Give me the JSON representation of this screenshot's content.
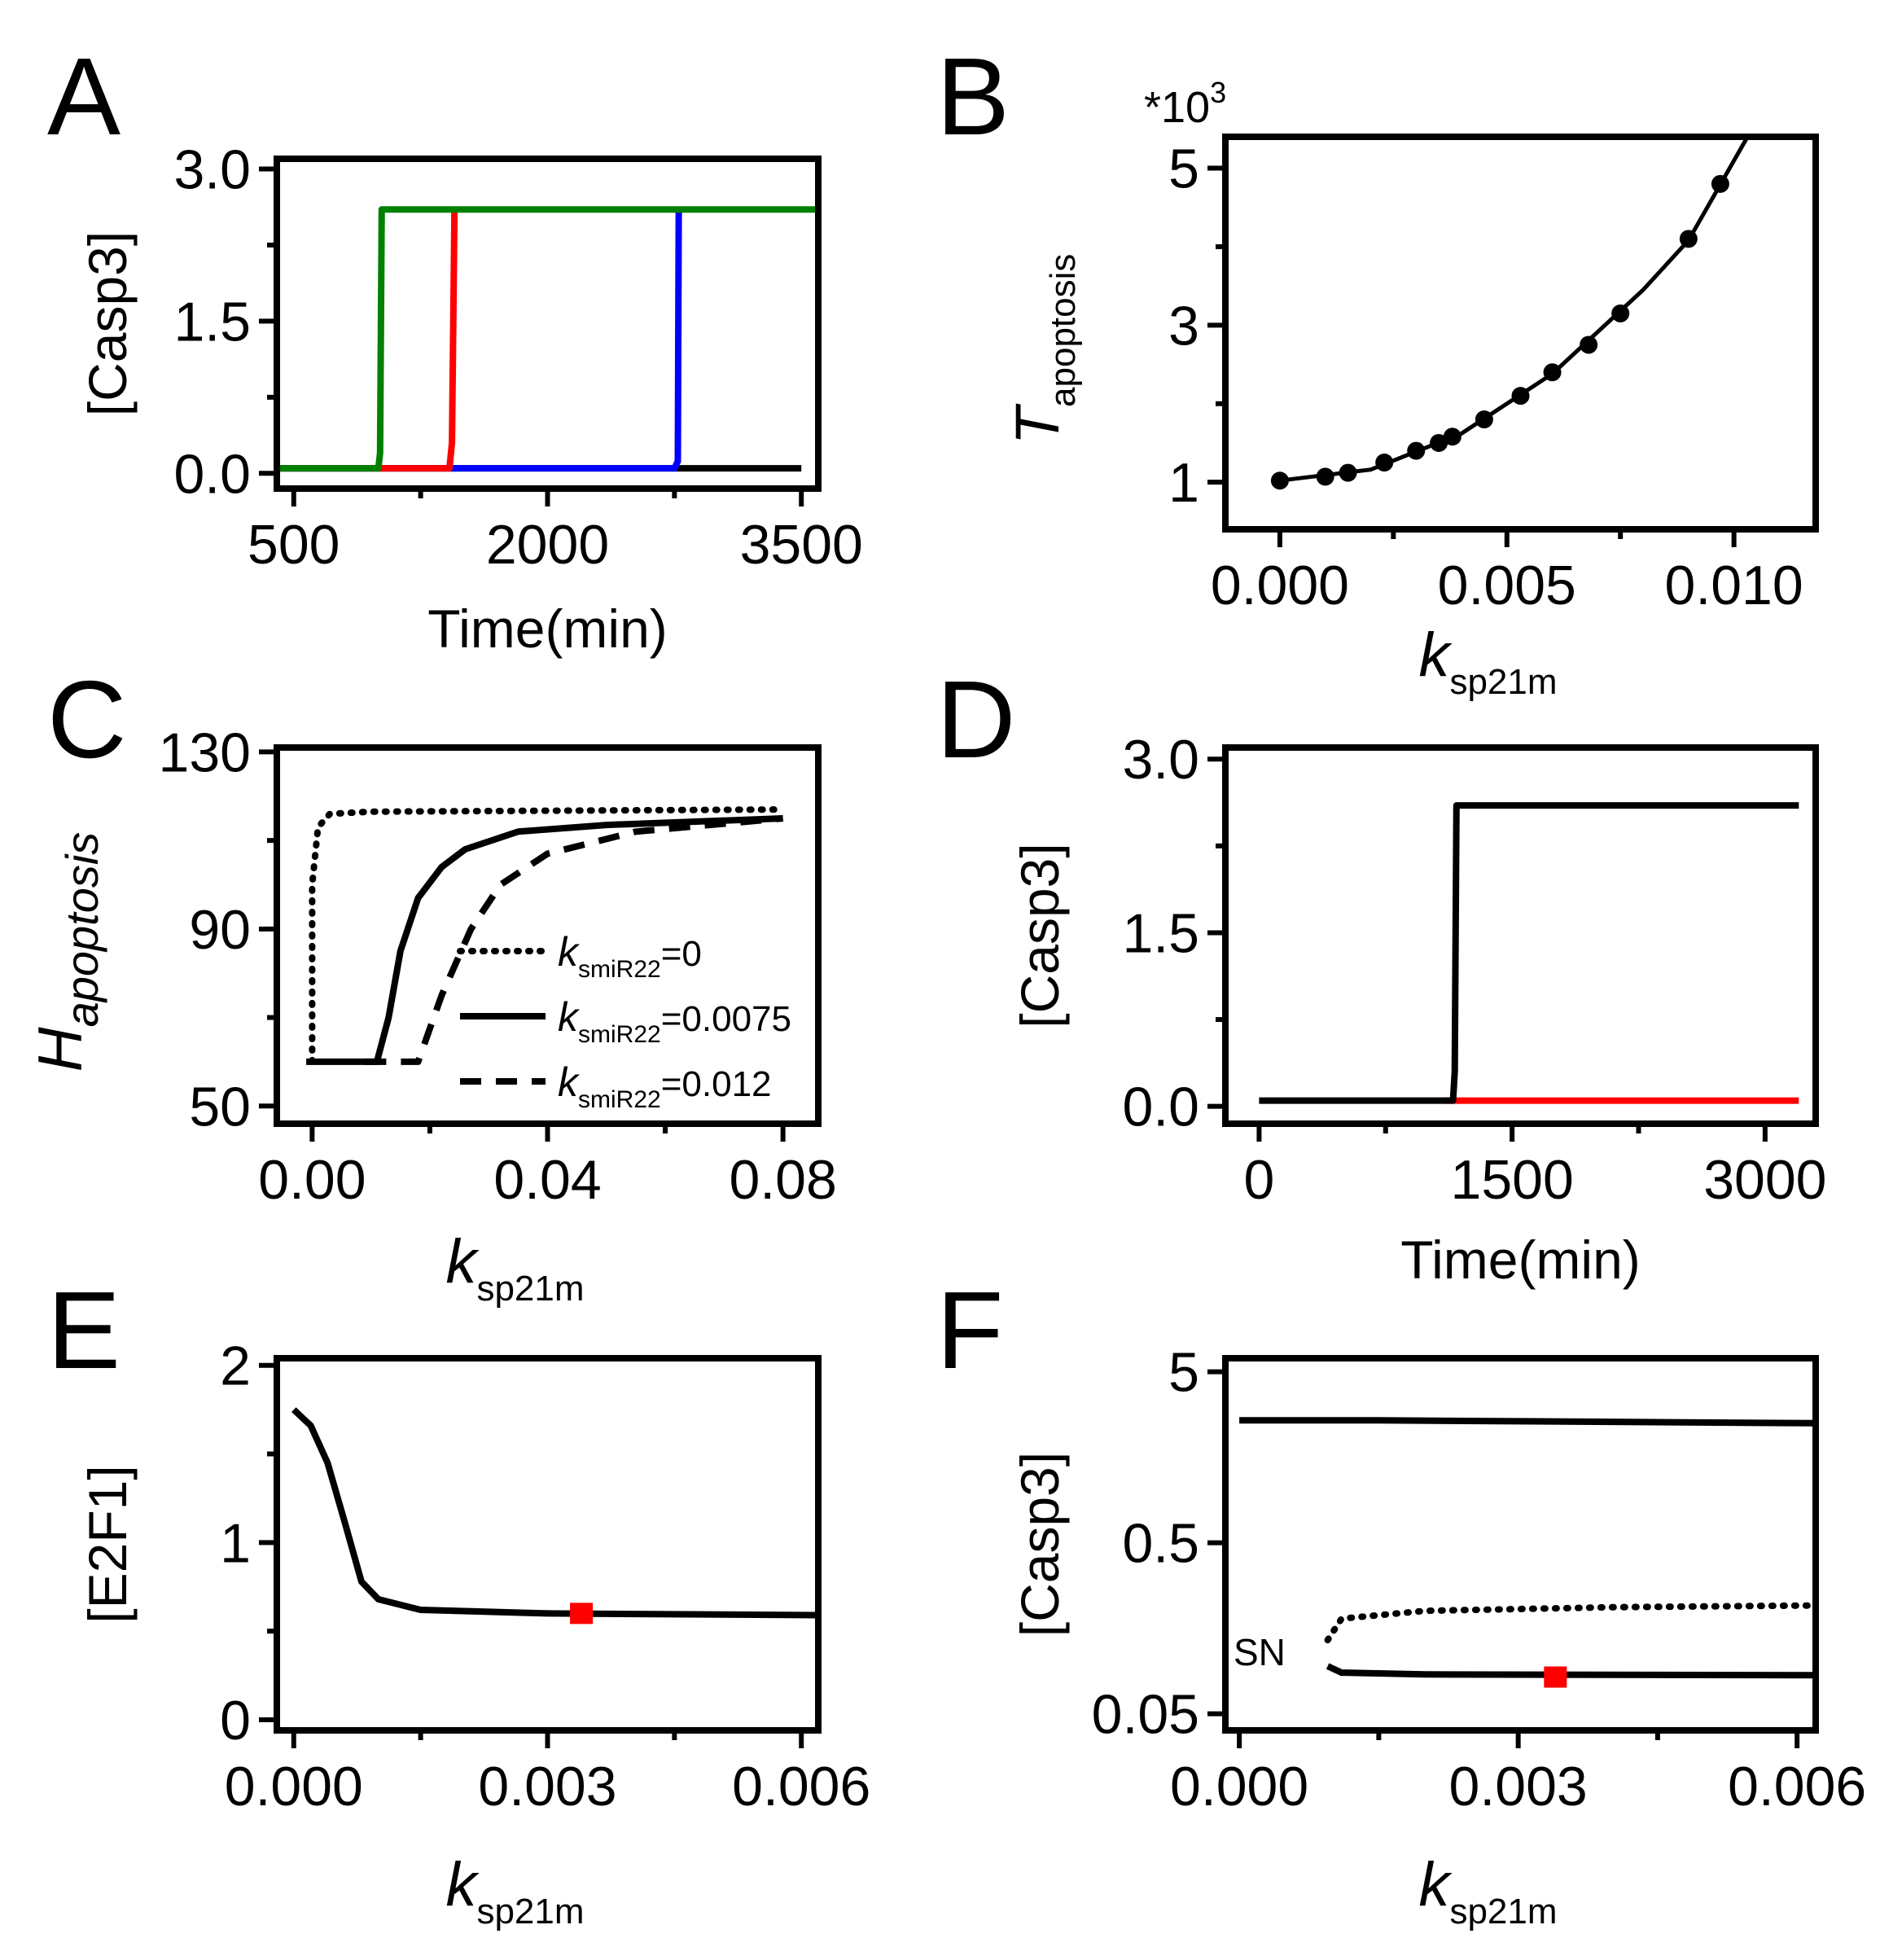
{
  "chart_data": [
    {
      "panel": "A",
      "type": "line",
      "xlabel": "Time(min)",
      "ylabel": "[Casp3]",
      "xlim": [
        400,
        3600
      ],
      "ylim": [
        -0.15,
        3.1
      ],
      "xticks": [
        "500",
        "2000",
        "3500"
      ],
      "yticks": [
        "0.0",
        "1.5",
        "3.0"
      ],
      "series": [
        {
          "color": "#000000",
          "points": [
            [
              400,
              0.05
            ],
            [
              3500,
              0.05
            ]
          ]
        },
        {
          "color": "#0000ff",
          "points": [
            [
              400,
              0.05
            ],
            [
              2750,
              0.05
            ],
            [
              2770,
              0.12
            ],
            [
              2775,
              2.58
            ],
            [
              2790,
              2.6
            ]
          ]
        },
        {
          "color": "#ff0000",
          "points": [
            [
              400,
              0.05
            ],
            [
              1420,
              0.05
            ],
            [
              1435,
              0.3
            ],
            [
              1450,
              2.6
            ]
          ]
        },
        {
          "color": "#008000",
          "points": [
            [
              400,
              0.05
            ],
            [
              1000,
              0.05
            ],
            [
              1010,
              0.2
            ],
            [
              1020,
              2.6
            ],
            [
              3600,
              2.6
            ]
          ]
        }
      ]
    },
    {
      "panel": "B",
      "type": "line",
      "xlabel": "k",
      "xlabel_sub": "sp21m",
      "ylabel": "T",
      "ylabel_sub": "apoptosis",
      "multiplier": "*10",
      "multiplier_exp": "3",
      "xlim": [
        -0.0012,
        0.0118
      ],
      "ylim": [
        0.4,
        5.4
      ],
      "xticks": [
        "0.000",
        "0.005",
        "0.010"
      ],
      "yticks": [
        "1",
        "3",
        "5"
      ],
      "x": [
        0,
        0.001,
        0.0015,
        0.0023,
        0.003,
        0.0035,
        0.0038,
        0.0045,
        0.0053,
        0.006,
        0.0068,
        0.0075,
        0.009,
        0.0097
      ],
      "y": [
        1.02,
        1.07,
        1.12,
        1.25,
        1.4,
        1.5,
        1.58,
        1.8,
        2.1,
        2.4,
        2.75,
        3.15,
        4.1,
        4.8
      ],
      "curve": [
        [
          0,
          1.02
        ],
        [
          0.002,
          1.16
        ],
        [
          0.004,
          1.62
        ],
        [
          0.006,
          2.38
        ],
        [
          0.008,
          3.45
        ],
        [
          0.009,
          4.08
        ],
        [
          0.0103,
          5.4
        ]
      ]
    },
    {
      "panel": "C",
      "type": "line",
      "xlabel": "k",
      "xlabel_sub": "sp21m",
      "ylabel": "H",
      "ylabel_sub": "apoptosis",
      "xlim": [
        -0.006,
        0.086
      ],
      "ylim": [
        46,
        131
      ],
      "xticks": [
        "0.00",
        "0.04",
        "0.08"
      ],
      "yticks": [
        "50",
        "90",
        "130"
      ],
      "series": [
        {
          "name": "=0",
          "name_k": "k",
          "name_sub": "smiR22",
          "dash": "dotted",
          "points": [
            [
              0,
              60
            ],
            [
              0,
              100
            ],
            [
              0.001,
              113
            ],
            [
              0.003,
              116
            ],
            [
              0.01,
              116.5
            ],
            [
              0.08,
              117
            ]
          ]
        },
        {
          "name": "=0.0075",
          "name_k": "k",
          "name_sub": "smiR22",
          "dash": "solid",
          "points": [
            [
              -0.001,
              60
            ],
            [
              0.011,
              60
            ],
            [
              0.013,
              70
            ],
            [
              0.015,
              85
            ],
            [
              0.018,
              97
            ],
            [
              0.022,
              104
            ],
            [
              0.026,
              108
            ],
            [
              0.035,
              112
            ],
            [
              0.05,
              113.5
            ],
            [
              0.08,
              115
            ]
          ]
        },
        {
          "name": "=0.012",
          "name_k": "k",
          "name_sub": "smiR22",
          "dash": "dashed",
          "points": [
            [
              0.009,
              60
            ],
            [
              0.012,
              60
            ],
            [
              0.018,
              60
            ],
            [
              0.022,
              75
            ],
            [
              0.027,
              90
            ],
            [
              0.032,
              100
            ],
            [
              0.04,
              107
            ],
            [
              0.055,
              112
            ],
            [
              0.08,
              115
            ]
          ]
        }
      ]
    },
    {
      "panel": "D",
      "type": "line",
      "xlabel": "Time(min)",
      "ylabel": "[Casp3]",
      "xlim": [
        -200,
        3300
      ],
      "ylim": [
        -0.15,
        3.1
      ],
      "xticks": [
        "0",
        "1500",
        "3000"
      ],
      "yticks": [
        "0.0",
        "1.5",
        "3.0"
      ],
      "series": [
        {
          "color": "#ff0000",
          "points": [
            [
              1100,
              0.05
            ],
            [
              3200,
              0.05
            ]
          ]
        },
        {
          "color": "#000000",
          "points": [
            [
              0,
              0.05
            ],
            [
              1150,
              0.05
            ],
            [
              1160,
              0.3
            ],
            [
              1170,
              2.6
            ],
            [
              3200,
              2.6
            ]
          ]
        }
      ]
    },
    {
      "panel": "E",
      "type": "line",
      "xlabel": "k",
      "xlabel_sub": "sp21m",
      "ylabel": "[E2F1]",
      "xlim": [
        -0.0002,
        0.0062
      ],
      "ylim": [
        -0.06,
        2.04
      ],
      "xticks": [
        "0.000",
        "0.003",
        "0.006"
      ],
      "yticks": [
        "0",
        "1",
        "2"
      ],
      "series": [
        {
          "color": "#000000",
          "points": [
            [
              0,
              1.75
            ],
            [
              0.0002,
              1.66
            ],
            [
              0.0004,
              1.45
            ],
            [
              0.0006,
              1.12
            ],
            [
              0.0008,
              0.78
            ],
            [
              0.001,
              0.68
            ],
            [
              0.0015,
              0.62
            ],
            [
              0.003,
              0.6
            ],
            [
              0.0062,
              0.59
            ]
          ]
        }
      ],
      "marker": {
        "x": 0.0034,
        "y": 0.6,
        "color": "#ff0000"
      }
    },
    {
      "panel": "F",
      "type": "line",
      "xlabel": "k",
      "xlabel_sub": "sp21m",
      "ylabel": "[Casp3]",
      "yscale": "log",
      "xlim": [
        -0.00015,
        0.0062
      ],
      "ylim": [
        0.04,
        6.0
      ],
      "xticks": [
        "0.000",
        "0.003",
        "0.006"
      ],
      "yticks": [
        "0.05",
        "0.5",
        "5"
      ],
      "annotation": "SN",
      "series": [
        {
          "dash": "solid",
          "points": [
            [
              0,
              2.6
            ],
            [
              0.0015,
              2.6
            ],
            [
              0.0062,
              2.5
            ]
          ]
        },
        {
          "dash": "dotted",
          "points": [
            [
              0.00095,
              0.135
            ],
            [
              0.0011,
              0.18
            ],
            [
              0.002,
              0.2
            ],
            [
              0.004,
              0.21
            ],
            [
              0.0062,
              0.215
            ]
          ]
        },
        {
          "dash": "solid",
          "points": [
            [
              0.00095,
              0.095
            ],
            [
              0.0011,
              0.087
            ],
            [
              0.002,
              0.085
            ],
            [
              0.0062,
              0.084
            ]
          ]
        }
      ],
      "marker": {
        "x": 0.0034,
        "y": 0.082,
        "color": "#ff0000"
      }
    }
  ]
}
